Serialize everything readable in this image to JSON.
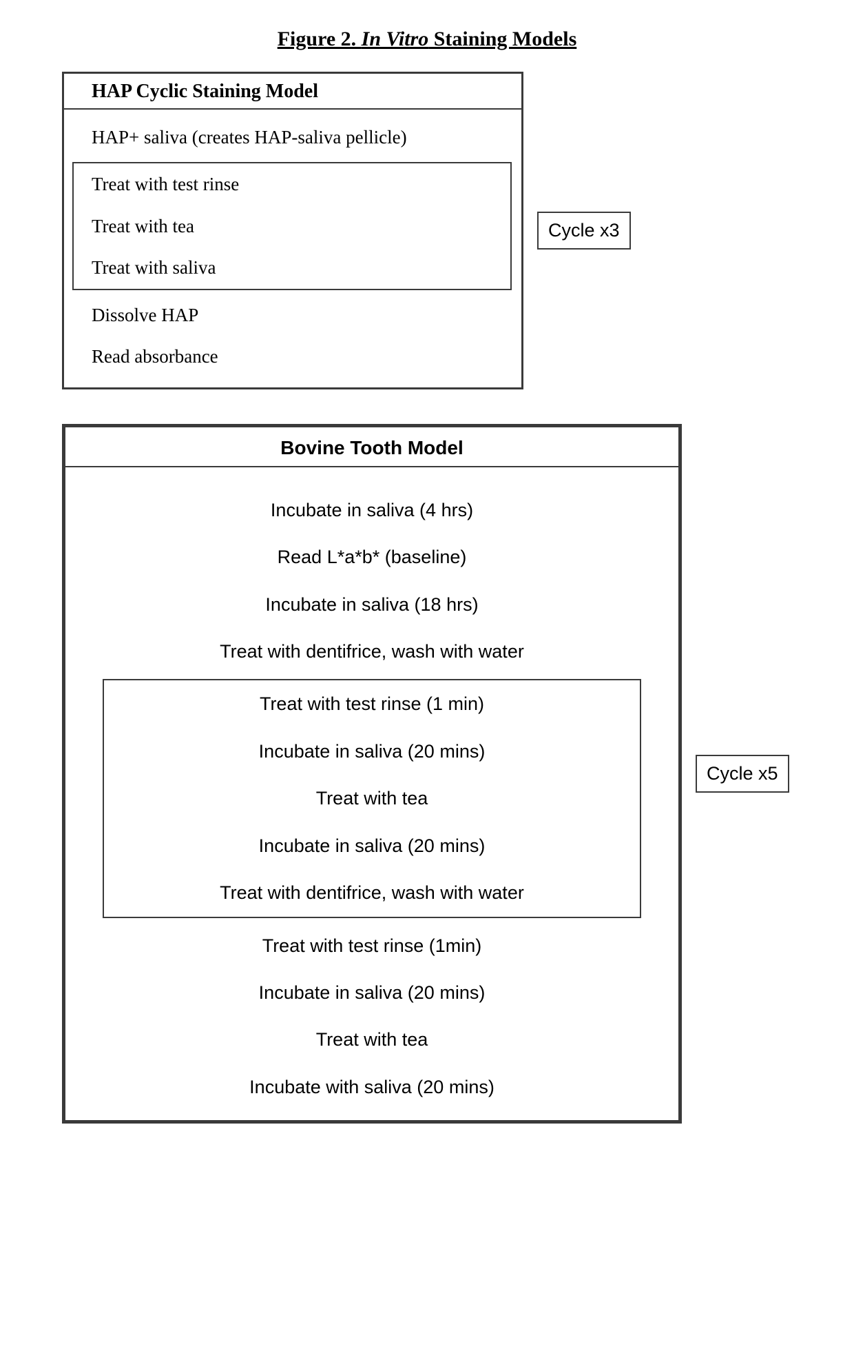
{
  "figure": {
    "title_prefix": "Figure 2. ",
    "title_italic": "In Vitro",
    "title_suffix": " Staining Models"
  },
  "colors": {
    "border": "#3a3a3a",
    "bg": "#ffffff",
    "text": "#000000"
  },
  "hap_model": {
    "header": "HAP Cyclic Staining Model",
    "steps_before": [
      "HAP+ saliva (creates HAP-saliva pellicle)"
    ],
    "cycle_steps": [
      "Treat with test rinse",
      "Treat with tea",
      "Treat with saliva"
    ],
    "steps_after": [
      "Dissolve HAP",
      "Read absorbance"
    ],
    "cycle_label": "Cycle x3"
  },
  "bovine_model": {
    "header": "Bovine Tooth Model",
    "steps_before": [
      "Incubate in saliva (4 hrs)",
      "Read L*a*b* (baseline)",
      "Incubate in saliva (18 hrs)",
      "Treat with dentifrice, wash with water"
    ],
    "cycle_steps": [
      "Treat with test rinse (1 min)",
      "Incubate in saliva (20 mins)",
      "Treat with tea",
      "Incubate in saliva (20 mins)",
      "Treat with dentifrice, wash with water"
    ],
    "steps_after": [
      "Treat with test rinse (1min)",
      "Incubate in saliva (20 mins)",
      "Treat with tea",
      "Incubate with saliva (20 mins)"
    ],
    "cycle_label": "Cycle x5"
  }
}
